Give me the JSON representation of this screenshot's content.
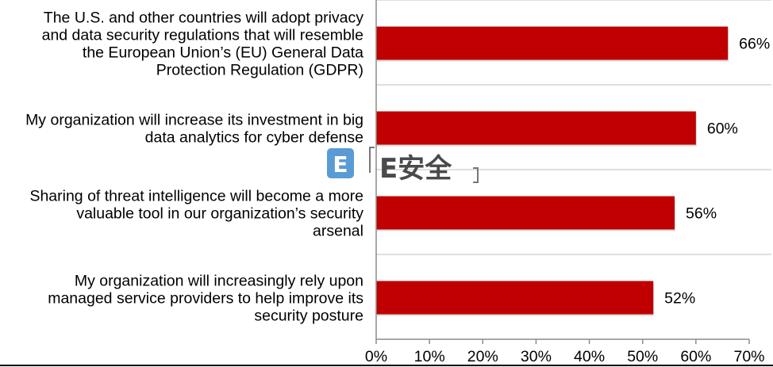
{
  "chart_data": {
    "type": "bar",
    "orientation": "horizontal",
    "categories": [
      "The U.S. and other countries will adopt privacy and data security regulations that will resemble the European Union’s (EU) General Data Protection Regulation (GDPR)",
      "My organization will increase its investment in big data analytics for cyber defense",
      "Sharing of threat intelligence will become a more valuable tool in our organization’s security arsenal",
      "My organization will increasingly rely upon managed service providers to help improve its security posture"
    ],
    "category_lines": [
      [
        "The U.S. and other countries will adopt privacy",
        "and data security regulations that will resemble",
        "the European Union’s (EU) General Data",
        "Protection Regulation (GDPR)"
      ],
      [
        "My organization will increase its investment in big",
        "data analytics for cyber defense"
      ],
      [
        "Sharing of threat intelligence will become a more",
        "valuable tool in our organization’s security",
        "arsenal"
      ],
      [
        "My organization will increasingly rely upon",
        "managed service providers to help improve its",
        "security posture"
      ]
    ],
    "values": [
      66,
      60,
      56,
      52
    ],
    "value_labels": [
      "66%",
      "60%",
      "56%",
      "52%"
    ],
    "xlim": [
      0,
      70
    ],
    "x_ticks": [
      0,
      10,
      20,
      30,
      40,
      50,
      60,
      70
    ],
    "x_tick_labels": [
      "0%",
      "10%",
      "20%",
      "30%",
      "40%",
      "50%",
      "60%",
      "70%"
    ],
    "title": "",
    "xlabel": "",
    "ylabel": "",
    "bar_color": "#C00000",
    "grid": "horizontal separators between categories"
  },
  "watermark": {
    "text": "E安全",
    "icon_letter": "E",
    "icon_color": "#5b9bd5"
  }
}
